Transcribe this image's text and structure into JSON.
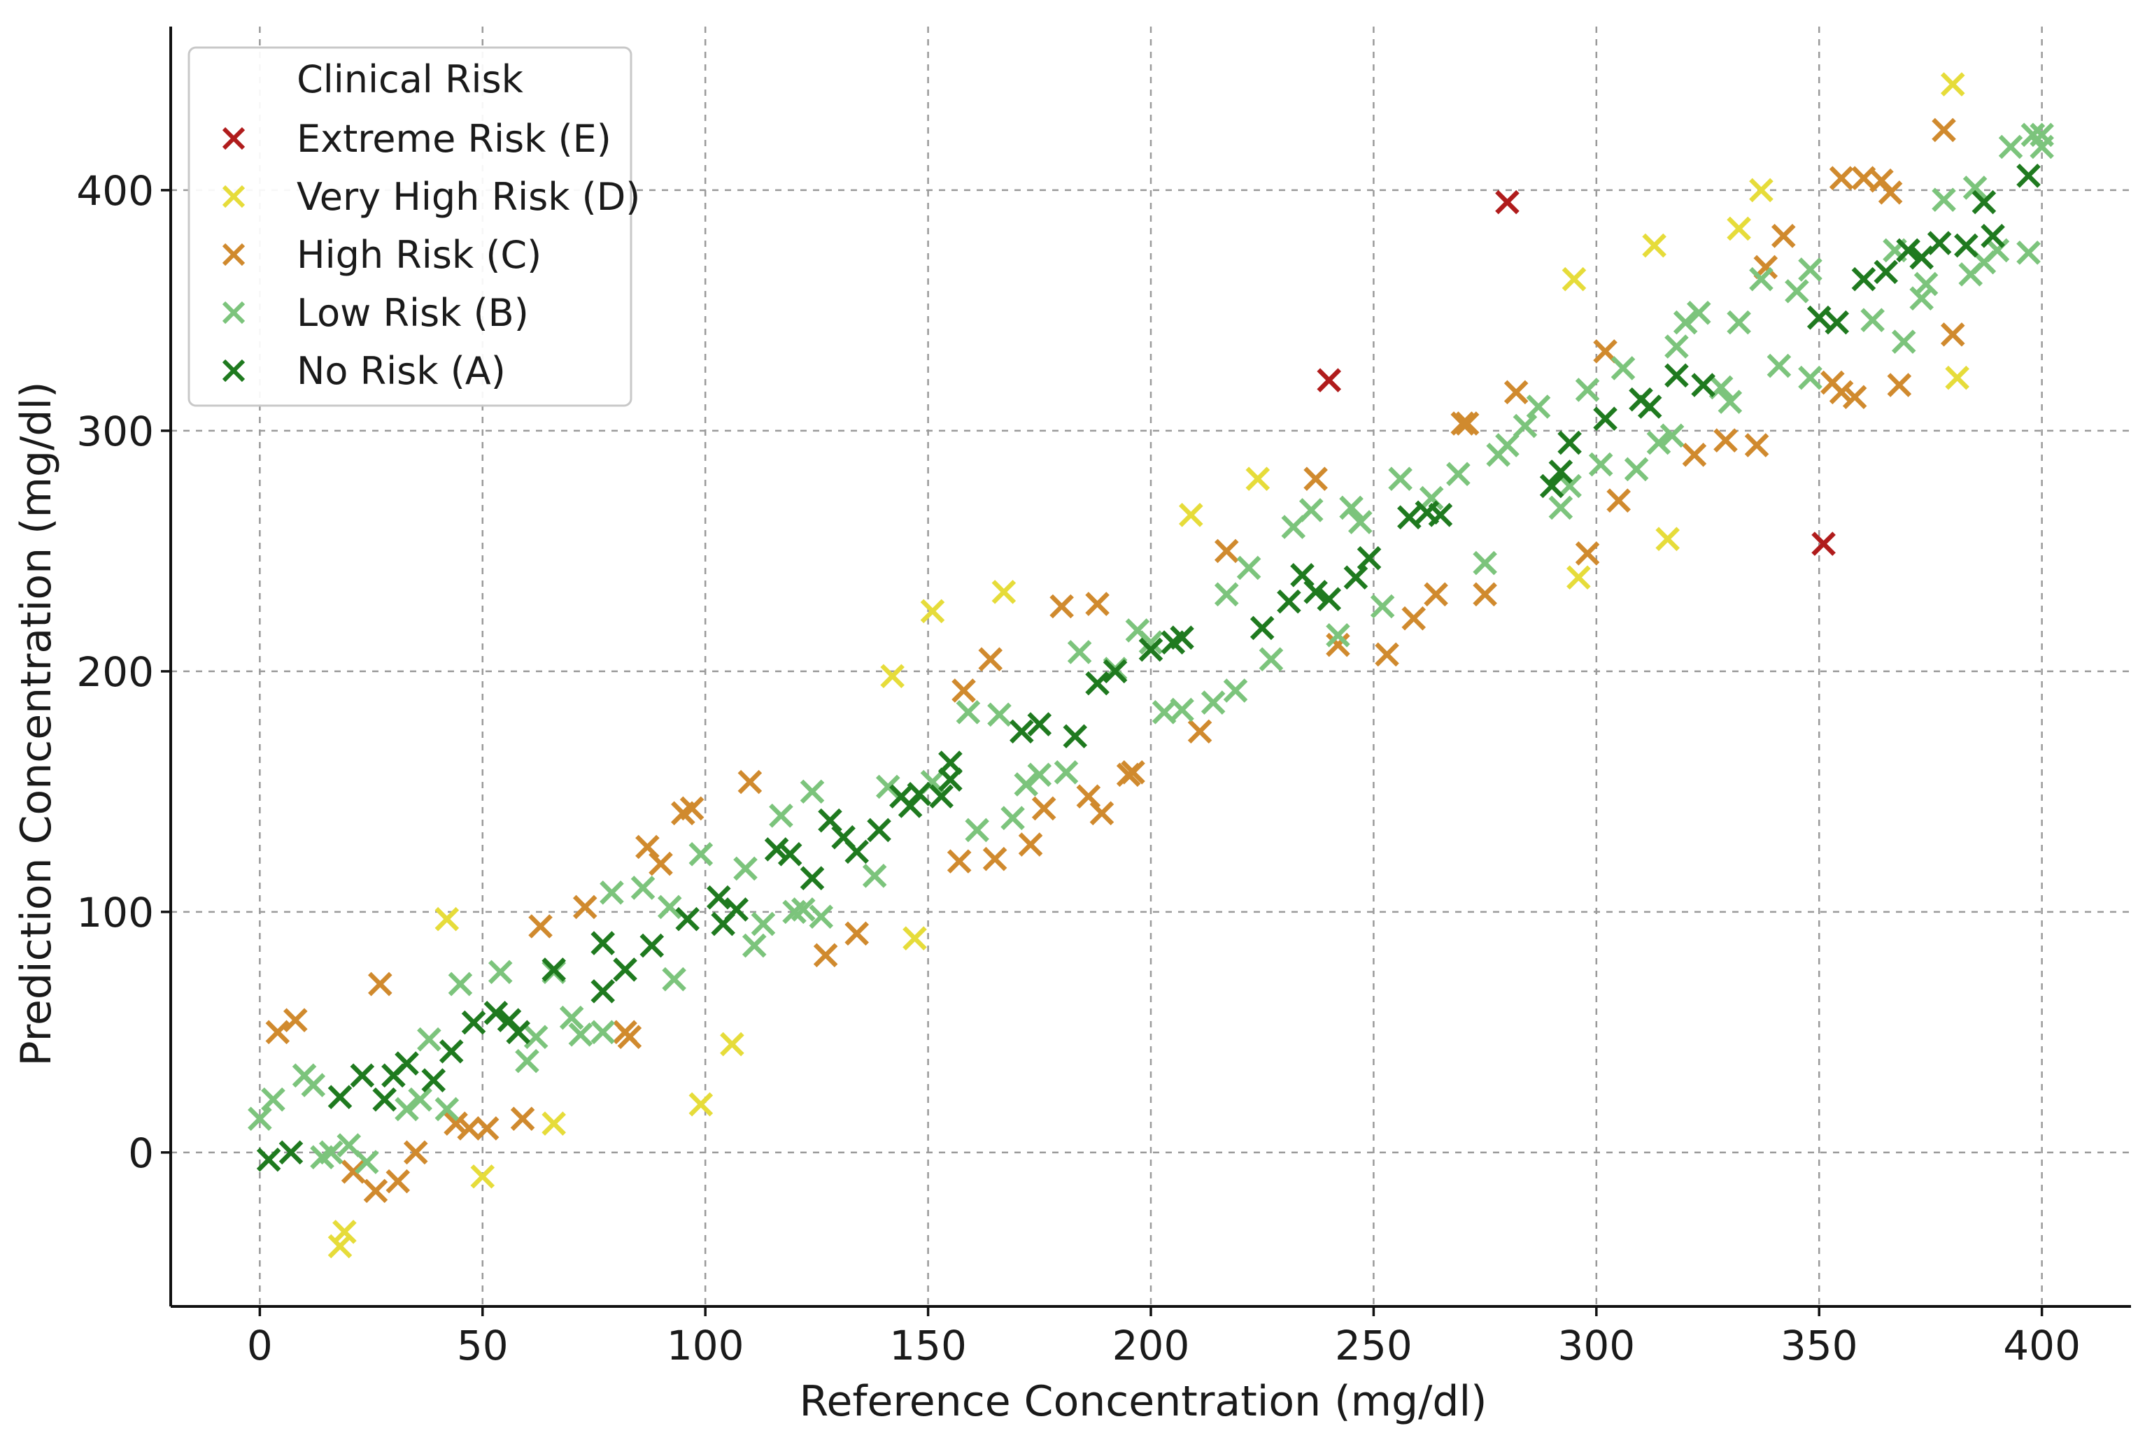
{
  "chart_data": {
    "type": "scatter",
    "title": "",
    "xlabel": "Reference Concentration (mg/dl)",
    "ylabel": "Prediction Concentration (mg/dl)",
    "xlim": [
      -20,
      420
    ],
    "ylim": [
      -64,
      468
    ],
    "xticks": [
      0,
      50,
      100,
      150,
      200,
      250,
      300,
      350,
      400
    ],
    "yticks": [
      0,
      100,
      200,
      300,
      400
    ],
    "grid": true,
    "marker": "x",
    "legend": {
      "title": "Clinical Risk",
      "position": "top-left",
      "entries": [
        "Extreme Risk (E)",
        "Very High Risk (D)",
        "High Risk (C)",
        "Low Risk (B)",
        "No Risk (A)"
      ]
    },
    "series": [
      {
        "name": "Extreme Risk (E)",
        "color": "#b01c1c",
        "points": [
          [
            240,
            321
          ],
          [
            280,
            395
          ],
          [
            351,
            253
          ]
        ]
      },
      {
        "name": "Very High Risk (D)",
        "color": "#e6dc3a",
        "points": [
          [
            18,
            -39
          ],
          [
            19,
            -33
          ],
          [
            42,
            97
          ],
          [
            50,
            -10
          ],
          [
            66,
            12
          ],
          [
            99,
            20
          ],
          [
            106,
            45
          ],
          [
            142,
            198
          ],
          [
            147,
            89
          ],
          [
            151,
            225
          ],
          [
            167,
            233
          ],
          [
            209,
            265
          ],
          [
            224,
            280
          ],
          [
            295,
            363
          ],
          [
            296,
            239
          ],
          [
            313,
            377
          ],
          [
            316,
            255
          ],
          [
            332,
            384
          ],
          [
            337,
            400
          ],
          [
            380,
            444
          ],
          [
            381,
            322
          ]
        ]
      },
      {
        "name": "High Risk (C)",
        "color": "#d08a2e",
        "points": [
          [
            4,
            50
          ],
          [
            8,
            55
          ],
          [
            21,
            -8
          ],
          [
            26,
            -16
          ],
          [
            27,
            70
          ],
          [
            31,
            -12
          ],
          [
            35,
            0
          ],
          [
            44,
            12
          ],
          [
            47,
            10
          ],
          [
            51,
            10
          ],
          [
            59,
            14
          ],
          [
            63,
            94
          ],
          [
            73,
            102
          ],
          [
            82,
            50
          ],
          [
            83,
            48
          ],
          [
            87,
            127
          ],
          [
            90,
            120
          ],
          [
            95,
            141
          ],
          [
            97,
            143
          ],
          [
            110,
            154
          ],
          [
            127,
            82
          ],
          [
            134,
            91
          ],
          [
            158,
            192
          ],
          [
            157,
            121
          ],
          [
            164,
            205
          ],
          [
            165,
            122
          ],
          [
            173,
            128
          ],
          [
            176,
            143
          ],
          [
            180,
            227
          ],
          [
            186,
            148
          ],
          [
            188,
            228
          ],
          [
            189,
            141
          ],
          [
            195,
            157
          ],
          [
            196,
            158
          ],
          [
            211,
            175
          ],
          [
            217,
            250
          ],
          [
            237,
            280
          ],
          [
            242,
            211
          ],
          [
            253,
            207
          ],
          [
            259,
            222
          ],
          [
            264,
            232
          ],
          [
            270,
            303
          ],
          [
            271,
            303
          ],
          [
            275,
            232
          ],
          [
            282,
            316
          ],
          [
            298,
            249
          ],
          [
            302,
            333
          ],
          [
            305,
            271
          ],
          [
            322,
            290
          ],
          [
            329,
            296
          ],
          [
            336,
            294
          ],
          [
            338,
            368
          ],
          [
            342,
            381
          ],
          [
            353,
            320
          ],
          [
            355,
            316
          ],
          [
            358,
            314
          ],
          [
            360,
            405
          ],
          [
            364,
            404
          ],
          [
            366,
            399
          ],
          [
            368,
            319
          ],
          [
            378,
            425
          ],
          [
            380,
            340
          ],
          [
            355,
            405
          ]
        ]
      },
      {
        "name": "Low Risk (B)",
        "color": "#7cc47c",
        "points": [
          [
            0,
            14
          ],
          [
            3,
            22
          ],
          [
            10,
            32
          ],
          [
            12,
            28
          ],
          [
            14,
            -2
          ],
          [
            16,
            0
          ],
          [
            20,
            3
          ],
          [
            24,
            -4
          ],
          [
            33,
            18
          ],
          [
            36,
            22
          ],
          [
            38,
            47
          ],
          [
            42,
            18
          ],
          [
            45,
            70
          ],
          [
            54,
            75
          ],
          [
            60,
            38
          ],
          [
            62,
            48
          ],
          [
            66,
            75
          ],
          [
            70,
            56
          ],
          [
            72,
            49
          ],
          [
            77,
            50
          ],
          [
            79,
            108
          ],
          [
            86,
            110
          ],
          [
            92,
            102
          ],
          [
            93,
            72
          ],
          [
            99,
            124
          ],
          [
            109,
            118
          ],
          [
            111,
            86
          ],
          [
            113,
            95
          ],
          [
            117,
            140
          ],
          [
            120,
            100
          ],
          [
            122,
            101
          ],
          [
            124,
            150
          ],
          [
            126,
            98
          ],
          [
            138,
            115
          ],
          [
            141,
            152
          ],
          [
            151,
            154
          ],
          [
            159,
            183
          ],
          [
            161,
            134
          ],
          [
            166,
            182
          ],
          [
            169,
            139
          ],
          [
            172,
            153
          ],
          [
            175,
            157
          ],
          [
            181,
            158
          ],
          [
            184,
            208
          ],
          [
            192,
            201
          ],
          [
            197,
            217
          ],
          [
            200,
            212
          ],
          [
            203,
            183
          ],
          [
            207,
            184
          ],
          [
            214,
            187
          ],
          [
            217,
            232
          ],
          [
            219,
            192
          ],
          [
            222,
            243
          ],
          [
            227,
            205
          ],
          [
            232,
            260
          ],
          [
            236,
            267
          ],
          [
            242,
            215
          ],
          [
            245,
            268
          ],
          [
            247,
            262
          ],
          [
            252,
            227
          ],
          [
            256,
            280
          ],
          [
            263,
            272
          ],
          [
            269,
            282
          ],
          [
            275,
            245
          ],
          [
            278,
            290
          ],
          [
            280,
            294
          ],
          [
            284,
            302
          ],
          [
            287,
            310
          ],
          [
            292,
            268
          ],
          [
            294,
            277
          ],
          [
            298,
            317
          ],
          [
            301,
            286
          ],
          [
            306,
            326
          ],
          [
            309,
            284
          ],
          [
            314,
            295
          ],
          [
            317,
            298
          ],
          [
            318,
            335
          ],
          [
            320,
            345
          ],
          [
            323,
            349
          ],
          [
            328,
            318
          ],
          [
            330,
            312
          ],
          [
            332,
            345
          ],
          [
            337,
            363
          ],
          [
            341,
            327
          ],
          [
            345,
            358
          ],
          [
            348,
            367
          ],
          [
            348,
            322
          ],
          [
            362,
            346
          ],
          [
            367,
            375
          ],
          [
            369,
            337
          ],
          [
            373,
            355
          ],
          [
            374,
            361
          ],
          [
            378,
            396
          ],
          [
            385,
            401
          ],
          [
            387,
            370
          ],
          [
            390,
            375
          ],
          [
            393,
            418
          ],
          [
            397,
            374
          ],
          [
            398,
            423
          ],
          [
            400,
            418
          ],
          [
            400,
            423
          ],
          [
            384,
            365
          ]
        ]
      },
      {
        "name": "No Risk (A)",
        "color": "#1f7a1f",
        "points": [
          [
            2,
            -3
          ],
          [
            7,
            0
          ],
          [
            18,
            23
          ],
          [
            23,
            32
          ],
          [
            28,
            22
          ],
          [
            30,
            32
          ],
          [
            33,
            37
          ],
          [
            39,
            30
          ],
          [
            43,
            42
          ],
          [
            48,
            54
          ],
          [
            53,
            58
          ],
          [
            56,
            55
          ],
          [
            58,
            50
          ],
          [
            66,
            76
          ],
          [
            77,
            67
          ],
          [
            77,
            87
          ],
          [
            82,
            76
          ],
          [
            88,
            86
          ],
          [
            96,
            97
          ],
          [
            103,
            106
          ],
          [
            104,
            95
          ],
          [
            107,
            101
          ],
          [
            116,
            126
          ],
          [
            119,
            124
          ],
          [
            124,
            114
          ],
          [
            128,
            138
          ],
          [
            131,
            131
          ],
          [
            134,
            125
          ],
          [
            139,
            134
          ],
          [
            144,
            148
          ],
          [
            146,
            144
          ],
          [
            148,
            149
          ],
          [
            153,
            148
          ],
          [
            155,
            155
          ],
          [
            155,
            162
          ],
          [
            171,
            175
          ],
          [
            175,
            178
          ],
          [
            183,
            173
          ],
          [
            188,
            195
          ],
          [
            192,
            200
          ],
          [
            200,
            209
          ],
          [
            205,
            212
          ],
          [
            207,
            214
          ],
          [
            225,
            218
          ],
          [
            231,
            229
          ],
          [
            234,
            240
          ],
          [
            237,
            233
          ],
          [
            240,
            230
          ],
          [
            246,
            239
          ],
          [
            249,
            247
          ],
          [
            258,
            264
          ],
          [
            262,
            266
          ],
          [
            265,
            265
          ],
          [
            290,
            277
          ],
          [
            292,
            283
          ],
          [
            294,
            295
          ],
          [
            302,
            305
          ],
          [
            310,
            313
          ],
          [
            312,
            310
          ],
          [
            318,
            323
          ],
          [
            324,
            319
          ],
          [
            350,
            347
          ],
          [
            354,
            345
          ],
          [
            360,
            363
          ],
          [
            365,
            366
          ],
          [
            370,
            375
          ],
          [
            373,
            372
          ],
          [
            377,
            378
          ],
          [
            383,
            377
          ],
          [
            387,
            395
          ],
          [
            389,
            381
          ],
          [
            397,
            406
          ]
        ]
      }
    ]
  }
}
